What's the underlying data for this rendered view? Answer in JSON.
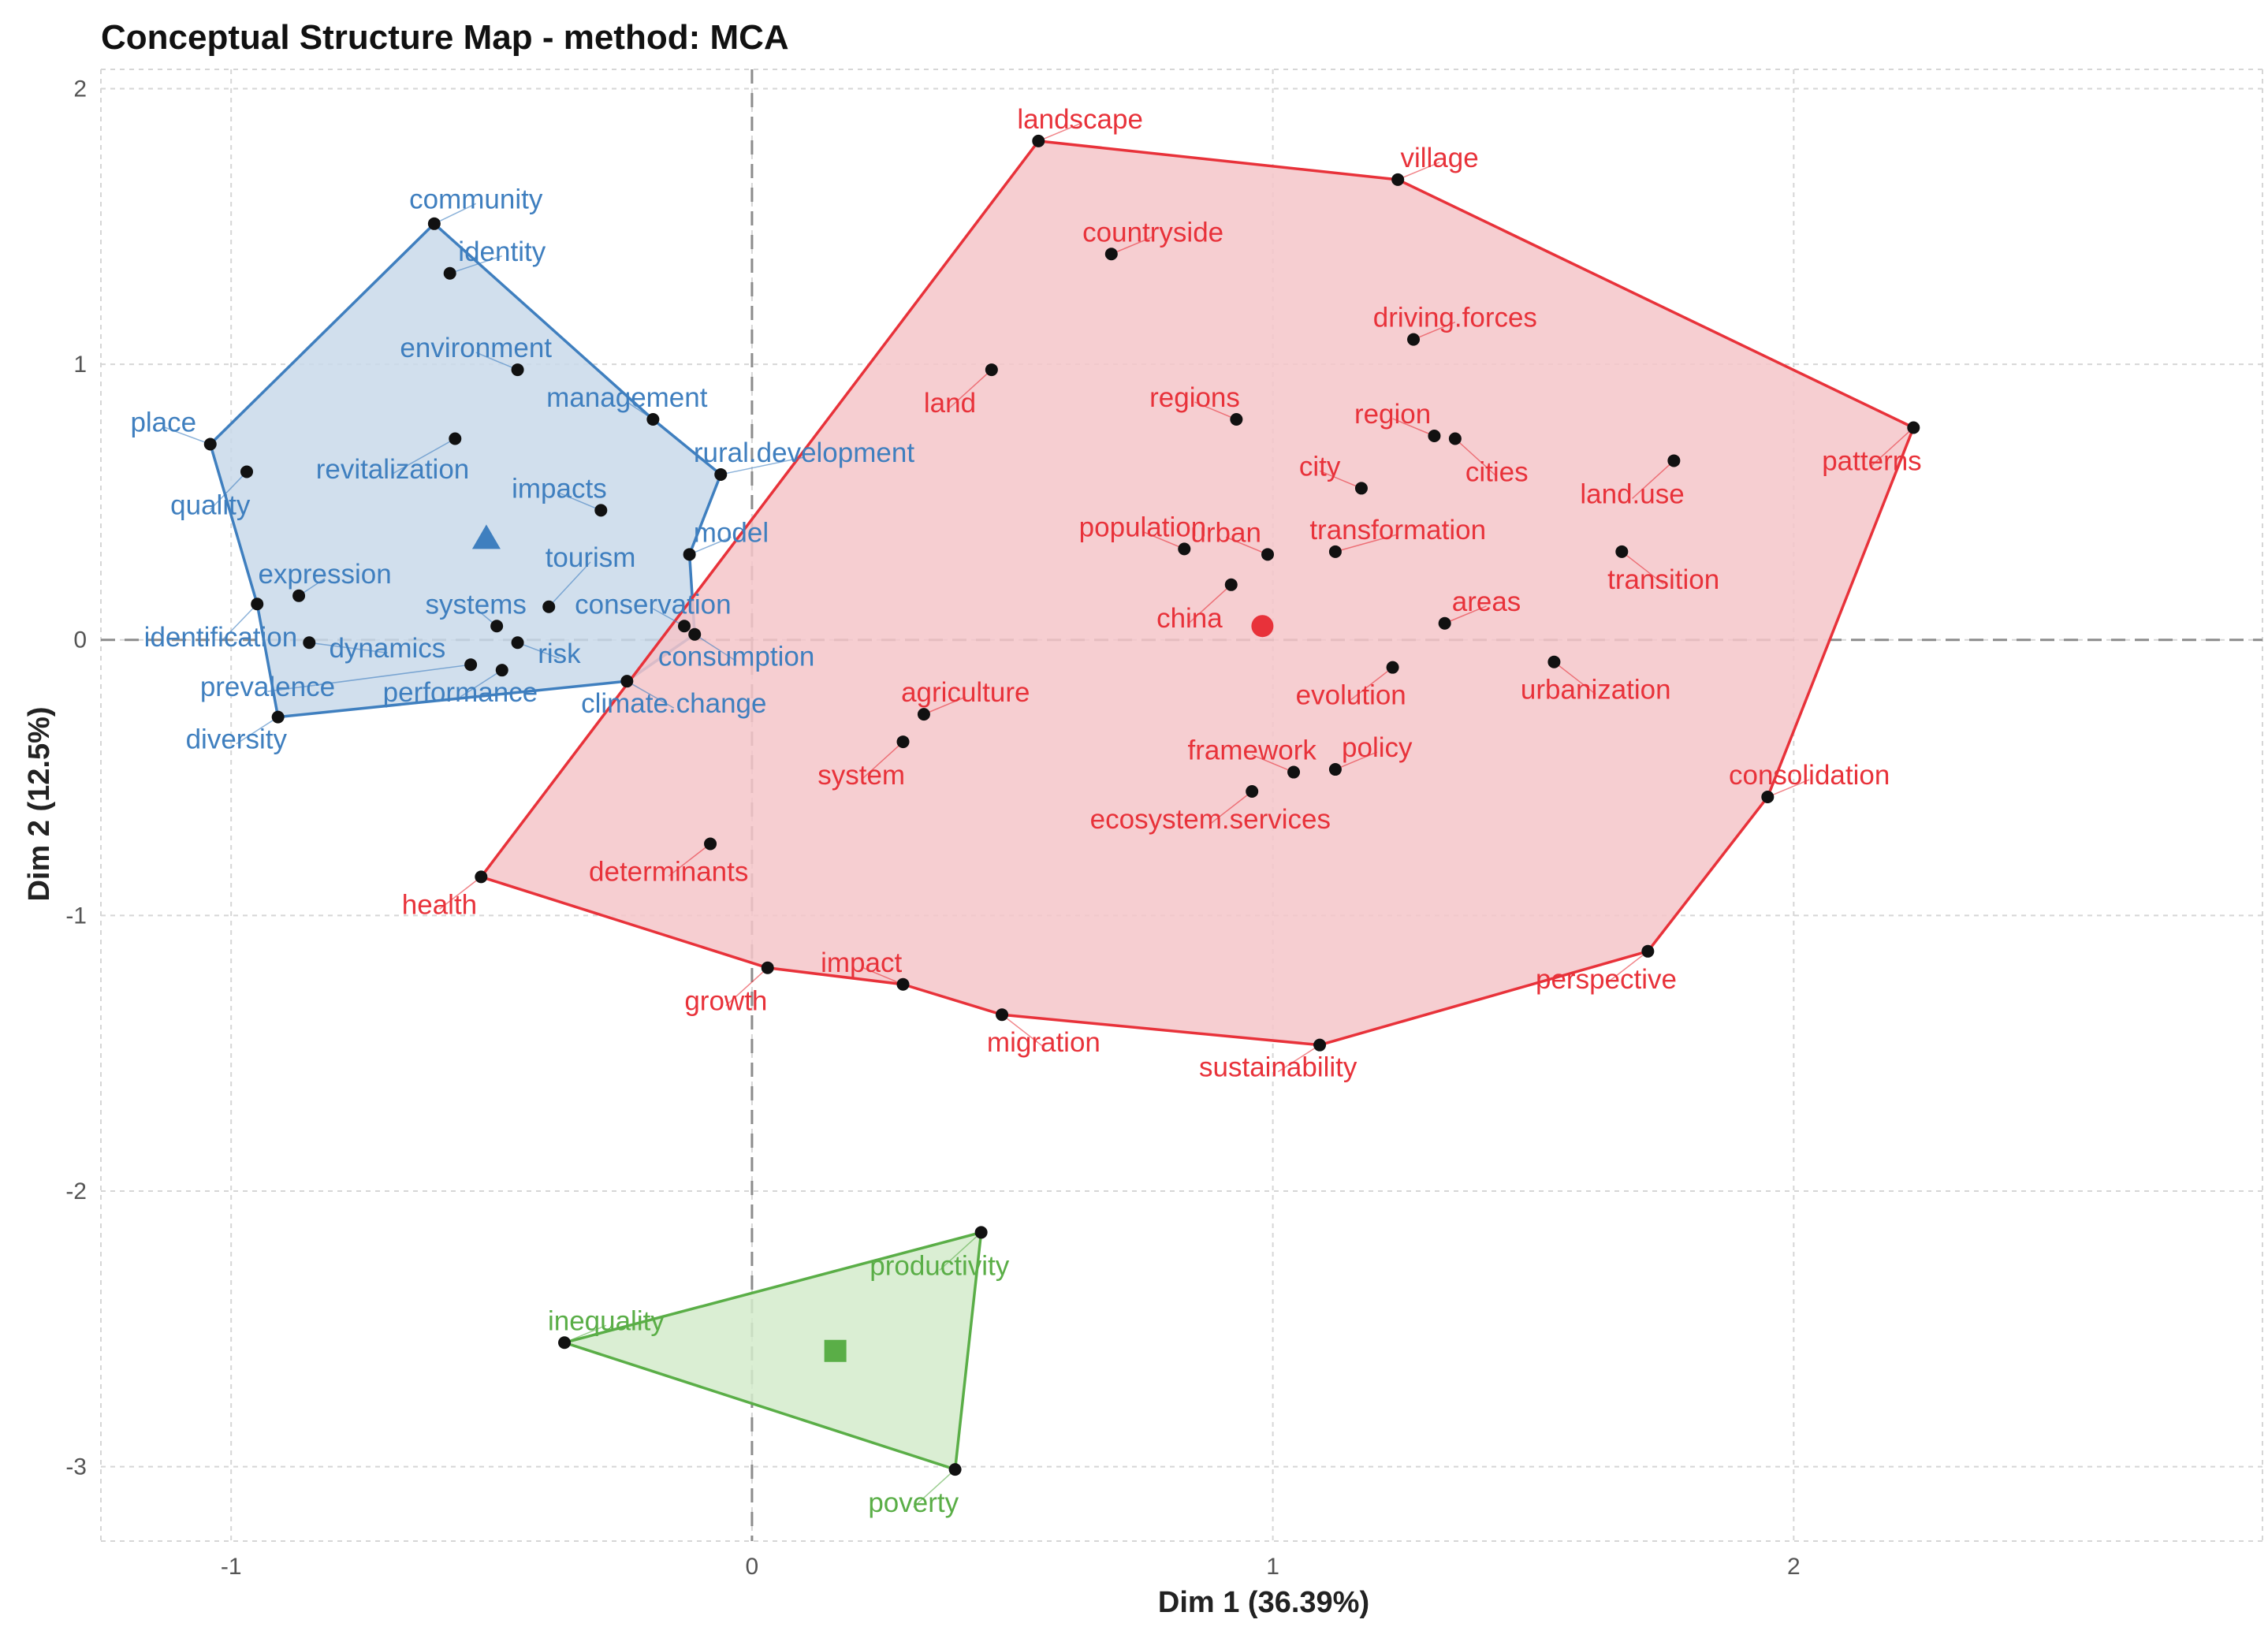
{
  "chart_data": {
    "type": "scatter",
    "title": "Conceptual Structure Map - method: MCA",
    "xlabel": "Dim 1 (36.39%)",
    "ylabel": "Dim 2 (12.5%)",
    "xlim": [
      -1.25,
      2.9
    ],
    "ylim": [
      -3.27,
      2.07
    ],
    "x_ticks": [
      -1,
      0,
      1,
      2
    ],
    "y_ticks": [
      -3,
      -2,
      -1,
      0,
      1,
      2
    ],
    "x_tick_labels": [
      "-1",
      "0",
      "1",
      "2"
    ],
    "y_tick_labels": [
      "-3",
      "-2",
      "-1",
      "0",
      "1",
      "2"
    ],
    "grid": true,
    "reference_lines": {
      "x": 0,
      "y": 0,
      "style": "dashed"
    },
    "clusters": [
      {
        "color": "#3f7fbf",
        "fill": "#c9d9ea",
        "centroid_marker": "triangle",
        "centroid": [
          -0.51,
          0.37
        ],
        "hull": [
          "community",
          "management",
          "rural.development",
          "model",
          "consumption",
          "climate.change",
          "diversity",
          "identification",
          "place"
        ],
        "points": [
          {
            "label": "community",
            "x": -0.61,
            "y": 1.51,
            "lx": -0.53,
            "ly": 1.6
          },
          {
            "label": "identity",
            "x": -0.58,
            "y": 1.33,
            "lx": -0.48,
            "ly": 1.41
          },
          {
            "label": "environment",
            "x": -0.45,
            "y": 0.98,
            "lx": -0.53,
            "ly": 1.06
          },
          {
            "label": "management",
            "x": -0.19,
            "y": 0.8,
            "lx": -0.24,
            "ly": 0.88
          },
          {
            "label": "place",
            "x": -1.04,
            "y": 0.71,
            "lx": -1.13,
            "ly": 0.79
          },
          {
            "label": "revitalization",
            "x": -0.57,
            "y": 0.73,
            "lx": -0.69,
            "ly": 0.62
          },
          {
            "label": "rural.development",
            "x": -0.06,
            "y": 0.6,
            "lx": 0.1,
            "ly": 0.68
          },
          {
            "label": "quality",
            "x": -0.97,
            "y": 0.61,
            "lx": -1.04,
            "ly": 0.49
          },
          {
            "label": "impacts",
            "x": -0.29,
            "y": 0.47,
            "lx": -0.37,
            "ly": 0.55
          },
          {
            "label": "model",
            "x": -0.12,
            "y": 0.31,
            "lx": -0.04,
            "ly": 0.39
          },
          {
            "label": "tourism",
            "x": -0.39,
            "y": 0.12,
            "lx": -0.31,
            "ly": 0.3
          },
          {
            "label": "expression",
            "x": -0.87,
            "y": 0.16,
            "lx": -0.82,
            "ly": 0.24
          },
          {
            "label": "identification",
            "x": -0.95,
            "y": 0.13,
            "lx": -1.02,
            "ly": 0.01
          },
          {
            "label": "systems",
            "x": -0.49,
            "y": 0.05,
            "lx": -0.53,
            "ly": 0.13
          },
          {
            "label": "conservation",
            "x": -0.13,
            "y": 0.05,
            "lx": -0.19,
            "ly": 0.13
          },
          {
            "label": "dynamics",
            "x": -0.85,
            "y": -0.01,
            "lx": -0.7,
            "ly": -0.03
          },
          {
            "label": "risk",
            "x": -0.45,
            "y": -0.01,
            "lx": -0.37,
            "ly": -0.05
          },
          {
            "label": "consumption",
            "x": -0.11,
            "y": 0.02,
            "lx": -0.03,
            "ly": -0.06
          },
          {
            "label": "prevalence",
            "x": -0.54,
            "y": -0.09,
            "lx": -0.93,
            "ly": -0.17
          },
          {
            "label": "performance",
            "x": -0.48,
            "y": -0.11,
            "lx": -0.56,
            "ly": -0.19
          },
          {
            "label": "climate.change",
            "x": -0.24,
            "y": -0.15,
            "lx": -0.15,
            "ly": -0.23
          },
          {
            "label": "diversity",
            "x": -0.91,
            "y": -0.28,
            "lx": -0.99,
            "ly": -0.36
          }
        ]
      },
      {
        "color": "#e8323a",
        "fill": "#f5c6c9",
        "centroid_marker": "circle",
        "centroid": [
          0.98,
          0.05
        ],
        "hull": [
          "landscape",
          "village",
          "patterns",
          "consolidation",
          "perspective",
          "sustainability",
          "migration",
          "impact",
          "growth",
          "health"
        ],
        "points": [
          {
            "label": "landscape",
            "x": 0.55,
            "y": 1.81,
            "lx": 0.63,
            "ly": 1.89
          },
          {
            "label": "village",
            "x": 1.24,
            "y": 1.67,
            "lx": 1.32,
            "ly": 1.75
          },
          {
            "label": "countryside",
            "x": 0.69,
            "y": 1.4,
            "lx": 0.77,
            "ly": 1.48
          },
          {
            "label": "driving.forces",
            "x": 1.27,
            "y": 1.09,
            "lx": 1.35,
            "ly": 1.17
          },
          {
            "label": "land",
            "x": 0.46,
            "y": 0.98,
            "lx": 0.38,
            "ly": 0.86
          },
          {
            "label": "regions",
            "x": 0.93,
            "y": 0.8,
            "lx": 0.85,
            "ly": 0.88
          },
          {
            "label": "region",
            "x": 1.31,
            "y": 0.74,
            "lx": 1.23,
            "ly": 0.82
          },
          {
            "label": "cities",
            "x": 1.35,
            "y": 0.73,
            "lx": 1.43,
            "ly": 0.61
          },
          {
            "label": "patterns",
            "x": 2.23,
            "y": 0.77,
            "lx": 2.15,
            "ly": 0.65
          },
          {
            "label": "land.use",
            "x": 1.77,
            "y": 0.65,
            "lx": 1.69,
            "ly": 0.53
          },
          {
            "label": "city",
            "x": 1.17,
            "y": 0.55,
            "lx": 1.09,
            "ly": 0.63
          },
          {
            "label": "population",
            "x": 0.83,
            "y": 0.33,
            "lx": 0.75,
            "ly": 0.41
          },
          {
            "label": "urban",
            "x": 0.99,
            "y": 0.31,
            "lx": 0.91,
            "ly": 0.39
          },
          {
            "label": "transformation",
            "x": 1.12,
            "y": 0.32,
            "lx": 1.24,
            "ly": 0.4
          },
          {
            "label": "transition",
            "x": 1.67,
            "y": 0.32,
            "lx": 1.75,
            "ly": 0.22
          },
          {
            "label": "china",
            "x": 0.92,
            "y": 0.2,
            "lx": 0.84,
            "ly": 0.08
          },
          {
            "label": "areas",
            "x": 1.33,
            "y": 0.06,
            "lx": 1.41,
            "ly": 0.14
          },
          {
            "label": "urbanization",
            "x": 1.54,
            "y": -0.08,
            "lx": 1.62,
            "ly": -0.18
          },
          {
            "label": "evolution",
            "x": 1.23,
            "y": -0.1,
            "lx": 1.15,
            "ly": -0.2
          },
          {
            "label": "agriculture",
            "x": 0.33,
            "y": -0.27,
            "lx": 0.41,
            "ly": -0.19
          },
          {
            "label": "system",
            "x": 0.29,
            "y": -0.37,
            "lx": 0.21,
            "ly": -0.49
          },
          {
            "label": "framework",
            "x": 1.04,
            "y": -0.48,
            "lx": 0.96,
            "ly": -0.4
          },
          {
            "label": "policy",
            "x": 1.12,
            "y": -0.47,
            "lx": 1.2,
            "ly": -0.39
          },
          {
            "label": "ecosystem.services",
            "x": 0.96,
            "y": -0.55,
            "lx": 0.88,
            "ly": -0.65
          },
          {
            "label": "consolidation",
            "x": 1.95,
            "y": -0.57,
            "lx": 2.03,
            "ly": -0.49
          },
          {
            "label": "determinants",
            "x": -0.08,
            "y": -0.74,
            "lx": -0.16,
            "ly": -0.84
          },
          {
            "label": "health",
            "x": -0.52,
            "y": -0.86,
            "lx": -0.6,
            "ly": -0.96
          },
          {
            "label": "perspective",
            "x": 1.72,
            "y": -1.13,
            "lx": 1.64,
            "ly": -1.23
          },
          {
            "label": "impact",
            "x": 0.29,
            "y": -1.25,
            "lx": 0.21,
            "ly": -1.17
          },
          {
            "label": "growth",
            "x": 0.03,
            "y": -1.19,
            "lx": -0.05,
            "ly": -1.31
          },
          {
            "label": "migration",
            "x": 0.48,
            "y": -1.36,
            "lx": 0.56,
            "ly": -1.46
          },
          {
            "label": "sustainability",
            "x": 1.09,
            "y": -1.47,
            "lx": 1.01,
            "ly": -1.55
          }
        ]
      },
      {
        "color": "#5aae47",
        "fill": "#d3ebcb",
        "centroid_marker": "square",
        "centroid": [
          0.16,
          -2.58
        ],
        "hull": [
          "inequality",
          "productivity",
          "poverty"
        ],
        "points": [
          {
            "label": "productivity",
            "x": 0.44,
            "y": -2.15,
            "lx": 0.36,
            "ly": -2.27
          },
          {
            "label": "inequality",
            "x": -0.36,
            "y": -2.55,
            "lx": -0.28,
            "ly": -2.47
          },
          {
            "label": "poverty",
            "x": 0.39,
            "y": -3.01,
            "lx": 0.31,
            "ly": -3.13
          }
        ]
      }
    ]
  }
}
